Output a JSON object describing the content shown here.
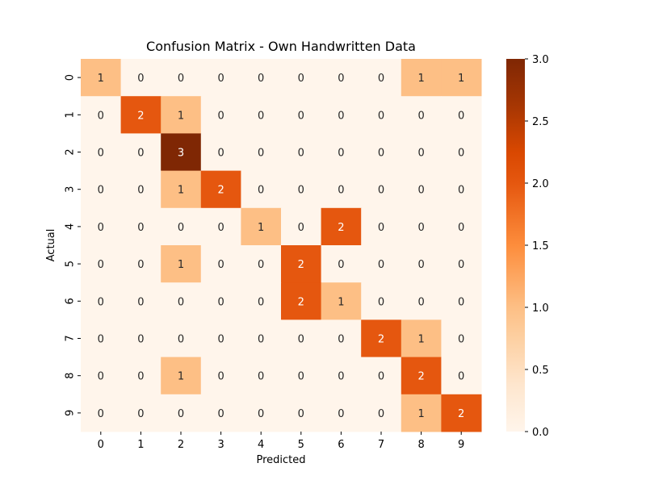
{
  "chart_data": {
    "type": "heatmap",
    "title": "Confusion Matrix - Own Handwritten Data",
    "xlabel": "Predicted",
    "ylabel": "Actual",
    "x_categories": [
      "0",
      "1",
      "2",
      "3",
      "4",
      "5",
      "6",
      "7",
      "8",
      "9"
    ],
    "y_categories": [
      "0",
      "1",
      "2",
      "3",
      "4",
      "5",
      "6",
      "7",
      "8",
      "9"
    ],
    "values": [
      [
        1,
        0,
        0,
        0,
        0,
        0,
        0,
        0,
        1,
        1
      ],
      [
        0,
        2,
        1,
        0,
        0,
        0,
        0,
        0,
        0,
        0
      ],
      [
        0,
        0,
        3,
        0,
        0,
        0,
        0,
        0,
        0,
        0
      ],
      [
        0,
        0,
        1,
        2,
        0,
        0,
        0,
        0,
        0,
        0
      ],
      [
        0,
        0,
        0,
        0,
        1,
        0,
        2,
        0,
        0,
        0
      ],
      [
        0,
        0,
        1,
        0,
        0,
        2,
        0,
        0,
        0,
        0
      ],
      [
        0,
        0,
        0,
        0,
        0,
        2,
        1,
        0,
        0,
        0
      ],
      [
        0,
        0,
        0,
        0,
        0,
        0,
        0,
        2,
        1,
        0
      ],
      [
        0,
        0,
        1,
        0,
        0,
        0,
        0,
        0,
        2,
        0
      ],
      [
        0,
        0,
        0,
        0,
        0,
        0,
        0,
        0,
        1,
        2
      ]
    ],
    "colorbar": {
      "range": [
        0,
        3
      ],
      "ticks": [
        "0.0",
        "0.5",
        "1.0",
        "1.5",
        "2.0",
        "2.5",
        "3.0"
      ]
    },
    "colormap": "Oranges",
    "colors": {
      "0": "#fff5eb",
      "1": "#fdbf85",
      "2": "#e5570f",
      "3": "#7f2704",
      "light_text": "#ffffff",
      "dark_text": "#262626"
    },
    "grid": false
  }
}
